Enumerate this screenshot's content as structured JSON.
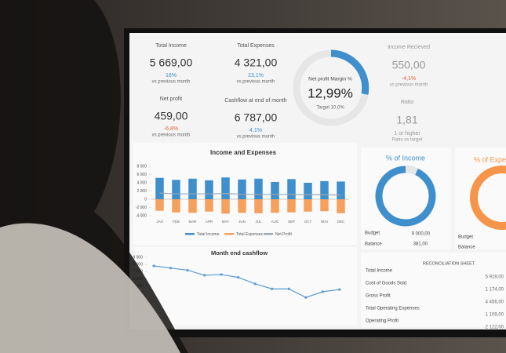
{
  "kpis": [
    {
      "label": "Total Income",
      "value": "5 669,00",
      "change": "16%",
      "note": "vs previous month"
    },
    {
      "label": "Total Expenses",
      "value": "4 321,00",
      "change": "23,1%",
      "note": "vs previous month"
    },
    {
      "label": "Net profit",
      "value": "459,00",
      "change": "-6,8%",
      "note": "vs previous month"
    },
    {
      "label": "Cashflow at end of month",
      "value": "6 787,00",
      "change": "4,1%",
      "note": "vs previous month"
    }
  ],
  "margin": {
    "label": "Net profit Margin %",
    "value": "12,99%",
    "target": "Target 10,0%"
  },
  "right_kpis": [
    {
      "label": "Income Recieved",
      "value": "550,00",
      "change": "-4,1%",
      "note": "vs previous month"
    },
    {
      "label": "Ratio",
      "value": "1,81",
      "change": "1 or higher",
      "note": "Ratio vs target"
    }
  ],
  "income_chart": {
    "type": "bar",
    "title": "Income and Expenses",
    "categories": [
      "JAN",
      "FEB",
      "MAR",
      "APR",
      "MAY",
      "JUN",
      "JUL",
      "AUG",
      "SEP",
      "OCT",
      "NOV",
      "DEC"
    ],
    "series": [
      {
        "name": "Total Income",
        "color": "#3f8fcc",
        "values": [
          5200,
          4700,
          5000,
          4600,
          5300,
          4800,
          5000,
          4200,
          4900,
          4000,
          4400,
          4300
        ]
      },
      {
        "name": "Total Expenses",
        "color": "#f6a05e",
        "values": [
          -2800,
          -3200,
          -3300,
          -3000,
          -3500,
          -3300,
          -3400,
          -3300,
          -3200,
          -3000,
          -2900,
          -3400
        ]
      },
      {
        "name": "Net Profit",
        "color": "#a0a8b0",
        "type": "line",
        "values": [
          1500,
          1300,
          1300,
          1300,
          1400,
          1200,
          1200,
          1200,
          1200,
          1100,
          1100,
          1000
        ]
      }
    ],
    "ylim": [
      -4000,
      8000
    ],
    "yticks": [
      {
        "value": -4000,
        "label": "-4 000"
      },
      {
        "value": -2000,
        "label": "-2 000"
      },
      0,
      {
        "value": 2000,
        "label": "2 000"
      },
      {
        "value": 4000,
        "label": "4 000"
      },
      {
        "value": 6000,
        "label": "6 000"
      },
      {
        "value": 8000,
        "label": "8 000"
      }
    ]
  },
  "cashflow_chart": {
    "type": "line",
    "title": "Month end cashflow",
    "color": "#5b9bd5",
    "values": [
      7800,
      7500,
      7200,
      6500,
      6600,
      6200,
      5300,
      4600,
      4600,
      3400,
      4200,
      4500
    ],
    "ylim": [
      2000,
      9000
    ],
    "yticks": [
      {
        "value": 2000,
        "label": "2 000"
      },
      {
        "value": 3000,
        "label": "3 000"
      },
      {
        "value": 4000,
        "label": "4 000"
      },
      {
        "value": 5000,
        "label": "5 000"
      },
      {
        "value": 6000,
        "label": "6 000"
      },
      {
        "value": 7000,
        "label": "7 000"
      },
      {
        "value": 8000,
        "label": "8 000"
      },
      {
        "value": 9000,
        "label": "9 000"
      }
    ]
  },
  "donut_income": {
    "title": "% of Income",
    "budget_label": "Budget",
    "budget": "9 000,00",
    "balance_label": "Balance",
    "balance": "381,00"
  },
  "donut_expenses": {
    "title": "% of Expenses",
    "budget_label": "Budget",
    "balance_label": "Balance"
  },
  "reconciliation": {
    "title": "RECONCILIATION SHEET",
    "rows": [
      [
        "Total Income",
        "5 919,00"
      ],
      [
        "Cost of Goods Sold",
        "1 174,00"
      ],
      [
        "Gross Profit",
        "4 456,00"
      ],
      [
        "Total Operating Expenses",
        "1 109,00"
      ],
      [
        "Operating Profit",
        "2 122,00"
      ]
    ]
  }
}
